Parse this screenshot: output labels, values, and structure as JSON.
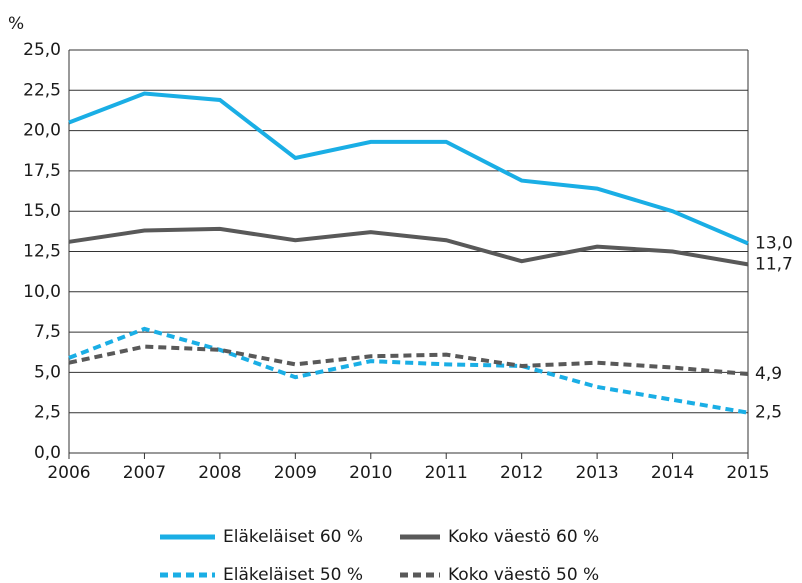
{
  "chart_data": {
    "type": "line",
    "y_label": "%",
    "x": [
      2006,
      2007,
      2008,
      2009,
      2010,
      2011,
      2012,
      2013,
      2014,
      2015
    ],
    "xlim": [
      2006,
      2015
    ],
    "xticks": [
      2006,
      2007,
      2008,
      2009,
      2010,
      2011,
      2012,
      2013,
      2014,
      2015
    ],
    "ylim": [
      0,
      25
    ],
    "yticks": [
      {
        "value": 0,
        "label": "0,0"
      },
      {
        "value": 2.5,
        "label": "2,5"
      },
      {
        "value": 5,
        "label": "5,0"
      },
      {
        "value": 7.5,
        "label": "7,5"
      },
      {
        "value": 10,
        "label": "10,0"
      },
      {
        "value": 12.5,
        "label": "12,5"
      },
      {
        "value": 15,
        "label": "15,0"
      },
      {
        "value": 17.5,
        "label": "17,5"
      },
      {
        "value": 20,
        "label": "20,0"
      },
      {
        "value": 22.5,
        "label": "22,5"
      },
      {
        "value": 25,
        "label": "25,0"
      }
    ],
    "grid": true,
    "series": [
      {
        "name": "Eläkeläiset 60 %",
        "color": "#1aaee5",
        "dashed": false,
        "values": [
          20.5,
          22.3,
          21.9,
          18.3,
          19.3,
          19.3,
          16.9,
          16.4,
          15.0,
          13.0
        ],
        "value_labels": [
          null,
          null,
          null,
          null,
          null,
          null,
          null,
          null,
          null,
          "13,0"
        ]
      },
      {
        "name": "Koko väestö 60 %",
        "color": "#595959",
        "dashed": false,
        "values": [
          13.1,
          13.8,
          13.9,
          13.2,
          13.7,
          13.2,
          11.9,
          12.8,
          12.5,
          11.7
        ],
        "value_labels": [
          null,
          null,
          null,
          null,
          null,
          null,
          null,
          null,
          null,
          "11,7"
        ]
      },
      {
        "name": "Eläkeläiset 50 %",
        "color": "#1aaee5",
        "dashed": true,
        "values": [
          5.9,
          7.7,
          6.4,
          4.7,
          5.7,
          5.5,
          5.4,
          4.1,
          3.3,
          2.5
        ],
        "value_labels": [
          null,
          null,
          null,
          null,
          null,
          null,
          null,
          null,
          null,
          "2,5"
        ]
      },
      {
        "name": "Koko väestö 50 %",
        "color": "#595959",
        "dashed": true,
        "values": [
          5.6,
          6.6,
          6.4,
          5.5,
          6.0,
          6.1,
          5.4,
          5.6,
          5.3,
          4.9
        ],
        "value_labels": [
          null,
          null,
          null,
          null,
          null,
          null,
          null,
          null,
          null,
          "4,9"
        ]
      }
    ]
  }
}
